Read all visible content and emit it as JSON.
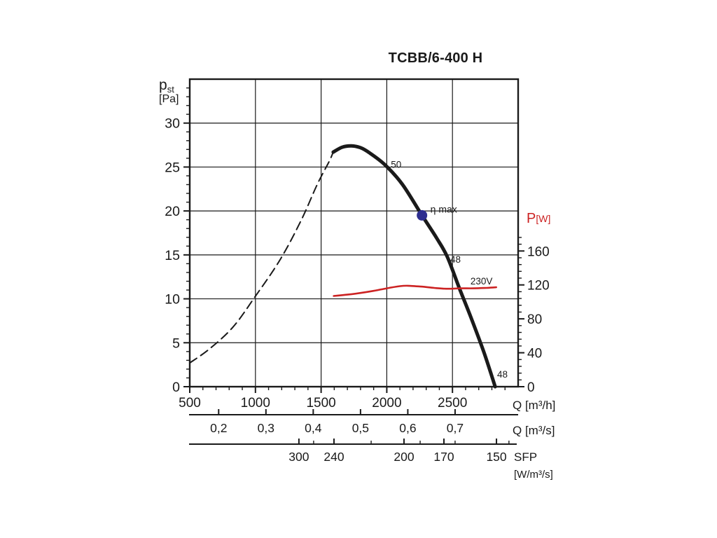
{
  "title": "TCBB/6-400 H",
  "colors": {
    "curve_black": "#1a1a1a",
    "accent_red": "#cc2222",
    "marker_navy": "#2d2e8f",
    "grid": "#1a1a1a"
  },
  "chart_data": {
    "type": "line",
    "title": "TCBB/6-400 H",
    "grid": "on",
    "left_axis": {
      "label": "p",
      "label_sub": "st",
      "unit": "[Pa]",
      "min": 0,
      "max": 35,
      "major_ticks": [
        0,
        5,
        10,
        15,
        20,
        25,
        30
      ],
      "tick_labels": [
        "0",
        "5",
        "10",
        "15",
        "20",
        "25",
        "30"
      ],
      "minor_step": 1,
      "gridlines": [
        5,
        10,
        15,
        20,
        25,
        30
      ]
    },
    "bottom_axis": {
      "label": "Q [m³/h]",
      "min": 500,
      "max": 3000,
      "major_ticks": [
        500,
        1000,
        1500,
        2000,
        2500
      ],
      "tick_labels": [
        "500",
        "1000",
        "1500",
        "2000",
        "2500"
      ],
      "minor_step": 100,
      "gridlines": [
        1000,
        1500,
        2000,
        2500
      ]
    },
    "right_axis": {
      "label": "P",
      "unit": "[W]",
      "min": 0,
      "max": 362.6,
      "major_ticks": [
        0,
        40,
        80,
        120,
        160
      ],
      "tick_labels": [
        "0",
        "40",
        "80",
        "120",
        "160"
      ],
      "minor_step": 8,
      "minor_max": 176
    },
    "mps_axis": {
      "label": "Q [m³/s]",
      "ticks_m3s": [
        0.2,
        0.3,
        0.4,
        0.5,
        0.6,
        0.7
      ],
      "tick_labels": [
        "0,2",
        "0,3",
        "0,4",
        "0,5",
        "0,6",
        "0,7"
      ]
    },
    "sfp_axis": {
      "label": "SFP",
      "unit": "[W/m³/s]",
      "major_ticks_q": [
        1331,
        1598,
        2131,
        2435,
        2835
      ],
      "tick_labels": [
        "300",
        "240",
        "200",
        "170",
        "150"
      ],
      "minor_ticks_q": [
        1443,
        1881,
        2254,
        2520,
        2930
      ]
    },
    "series": [
      {
        "name": "fan-curve-unstable-dashed",
        "axis": "left",
        "style": "dashed",
        "color": "#1a1a1a",
        "points": [
          [
            500,
            2.7
          ],
          [
            650,
            4.3
          ],
          [
            830,
            6.8
          ],
          [
            1000,
            10.3
          ],
          [
            1190,
            14.5
          ],
          [
            1350,
            19.0
          ],
          [
            1470,
            23.0
          ],
          [
            1560,
            25.6
          ],
          [
            1592,
            26.7
          ]
        ]
      },
      {
        "name": "fan-curve-solid",
        "axis": "left",
        "style": "solid",
        "color": "#1a1a1a",
        "points": [
          [
            1592,
            26.7
          ],
          [
            1660,
            27.25
          ],
          [
            1731,
            27.4
          ],
          [
            1800,
            27.2
          ],
          [
            1870,
            26.6
          ],
          [
            1990,
            25.2
          ],
          [
            2120,
            23.0
          ],
          [
            2268,
            19.5
          ],
          [
            2380,
            16.9
          ],
          [
            2460,
            14.8
          ],
          [
            2550,
            11.3
          ],
          [
            2640,
            7.9
          ],
          [
            2740,
            3.9
          ],
          [
            2825,
            0
          ]
        ]
      },
      {
        "name": "power-230v",
        "axis": "right",
        "style": "solid",
        "color": "#cc2222",
        "points": [
          [
            1596,
            107
          ],
          [
            1700,
            108.5
          ],
          [
            1800,
            110.5
          ],
          [
            1900,
            113
          ],
          [
            2000,
            116
          ],
          [
            2100,
            118.5
          ],
          [
            2160,
            119
          ],
          [
            2260,
            118
          ],
          [
            2360,
            116.5
          ],
          [
            2460,
            115.5
          ],
          [
            2560,
            116
          ],
          [
            2660,
            116
          ],
          [
            2760,
            116.5
          ],
          [
            2833,
            117.2
          ]
        ]
      }
    ],
    "point_markers": [
      {
        "name": "eta-max-point",
        "label": "η max",
        "q": 2268,
        "pa": 19.5,
        "color": "#2d2e8f"
      }
    ],
    "annotations": [
      {
        "text": "50",
        "q": 2031,
        "pa": 24.9,
        "color": "#1a1a1a"
      },
      {
        "text": "48",
        "q": 2483,
        "pa": 14.1,
        "color": "#1a1a1a"
      },
      {
        "text": "48",
        "q": 2840,
        "pa": 1.05,
        "color": "#1a1a1a"
      },
      {
        "text": "230V",
        "q": 2637,
        "w": 120.6,
        "color": "#cc2222"
      }
    ]
  }
}
